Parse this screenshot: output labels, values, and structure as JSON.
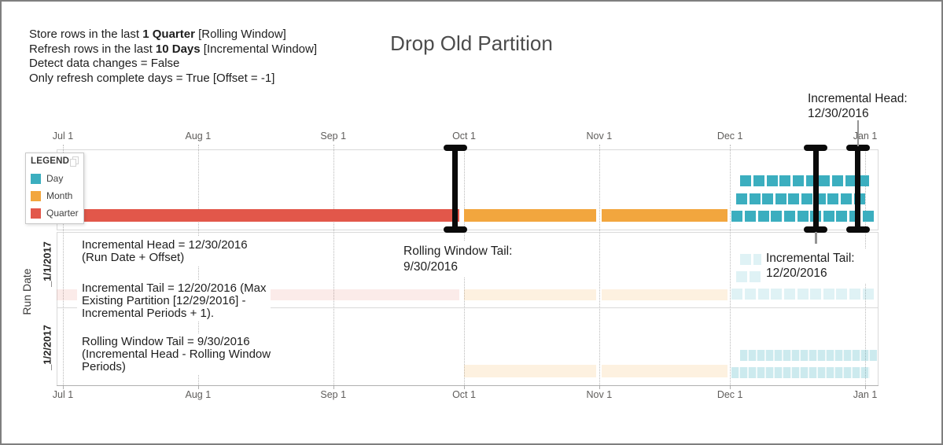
{
  "frame": {
    "title": "Drop Old Partition"
  },
  "config": {
    "lines": [
      {
        "parts": [
          {
            "t": "Store rows in the last "
          },
          {
            "t": "1 Quarter",
            "b": true
          },
          {
            "t": " [Rolling Window]"
          }
        ]
      },
      {
        "parts": [
          {
            "t": "Refresh rows in the last "
          },
          {
            "t": "10 Days",
            "b": true
          },
          {
            "t": " [Incremental Window]"
          }
        ]
      },
      {
        "parts": [
          {
            "t": "Detect data changes = False"
          }
        ]
      },
      {
        "parts": [
          {
            "t": "Only refresh complete days = True [Offset = -1]"
          }
        ]
      }
    ]
  },
  "legend": {
    "title": "LEGEND",
    "items": [
      {
        "label": "Day",
        "color": "#3BAEBF"
      },
      {
        "label": "Month",
        "color": "#F2A63E"
      },
      {
        "label": "Quarter",
        "color": "#E2574A"
      }
    ]
  },
  "axes": {
    "months": [
      {
        "label": "Jul 1",
        "day": 0
      },
      {
        "label": "Aug 1",
        "day": 31
      },
      {
        "label": "Sep 1",
        "day": 62
      },
      {
        "label": "Oct 1",
        "day": 92
      },
      {
        "label": "Nov 1",
        "day": 123
      },
      {
        "label": "Dec 1",
        "day": 153
      },
      {
        "label": "Jan 1",
        "day": 184
      }
    ],
    "y_label": "Run Date",
    "rows": [
      "_1/1/2017",
      "_1/2/2017"
    ]
  },
  "annotations": {
    "head_top": {
      "lines": [
        "Incremental Head:",
        "12/30/2016"
      ]
    },
    "head_left": {
      "lines": [
        "Incremental Head = 12/30/2016",
        "(Run Date + Offset)"
      ]
    },
    "tail_left": {
      "lines": [
        "Incremental Tail = 12/20/2016 (Max",
        "Existing Partition [12/29/2016] -",
        "Incremental Periods + 1)."
      ]
    },
    "rolling_left": {
      "lines": [
        "Rolling Window Tail = 9/30/2016",
        "(Incremental Head - Rolling Window",
        "Periods)"
      ]
    },
    "rolling_mid": {
      "lines": [
        "Rolling Window Tail:",
        "9/30/2016"
      ]
    },
    "tail_mid": {
      "lines": [
        "Incremental Tail:",
        "12/20/2016"
      ]
    }
  },
  "chart_data": {
    "type": "timeline",
    "title": "Drop Old Partition",
    "x_ticks": [
      "Jul 1",
      "Aug 1",
      "Sep 1",
      "Oct 1",
      "Nov 1",
      "Dec 1",
      "Jan 1"
    ],
    "y_axis_label": "Run Date",
    "run_rows": [
      "1/1/2017",
      "1/2/2017"
    ],
    "legend_position": "top-left",
    "grid": "dotted-monthly-vertical",
    "current_partitions": {
      "bars": [
        {
          "grain": "Quarter",
          "start_day": -1.5,
          "end_day": 91
        },
        {
          "grain": "Month",
          "start_day": 92,
          "end_day": 122.3
        },
        {
          "grain": "Month",
          "start_day": 123.5,
          "end_day": 152.5
        }
      ],
      "days": {
        "grain": "Day",
        "first_day": 153.4,
        "count": 31
      }
    },
    "markers": [
      {
        "name": "Rolling Window Tail",
        "date": "9/30/2016",
        "day": 90
      },
      {
        "name": "Incremental Tail",
        "date": "12/20/2016",
        "day": 172.7
      },
      {
        "name": "Incremental Head",
        "date": "12/30/2016",
        "day": 182.3
      }
    ],
    "rows": [
      {
        "run_date": "1/1/2017",
        "faded": true,
        "bars": [
          {
            "grain": "Quarter",
            "start_day": -1.5,
            "end_day": 91
          },
          {
            "grain": "Month",
            "start_day": 92,
            "end_day": 122.3
          },
          {
            "grain": "Month",
            "start_day": 123.5,
            "end_day": 152.5
          }
        ],
        "days": {
          "grain": "Day",
          "first_day": 153.4,
          "count": 31
        }
      },
      {
        "run_date": "1/2/2017",
        "faded": true,
        "bars": [
          {
            "grain": "Month",
            "start_day": 92,
            "end_day": 122.3
          },
          {
            "grain": "Month",
            "start_day": 123.5,
            "end_day": 152.5
          }
        ],
        "strips": [
          {
            "grain": "Day",
            "row": "upper",
            "start_day": 155.3,
            "end_day": 186.7
          },
          {
            "grain": "Day",
            "row": "lower",
            "start_day": 153.3,
            "end_day": 185.1
          }
        ]
      }
    ]
  }
}
